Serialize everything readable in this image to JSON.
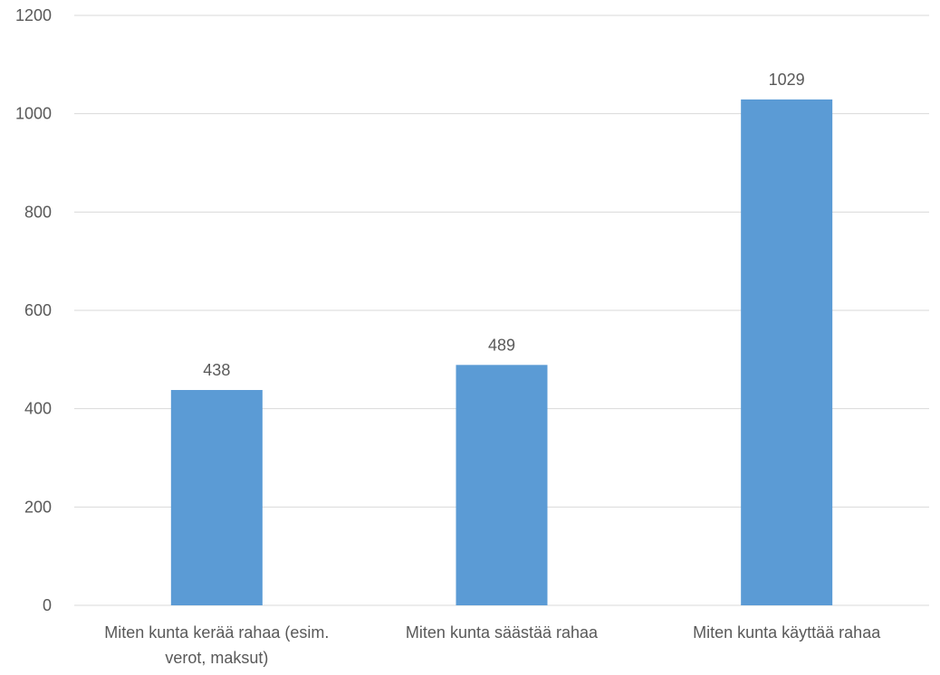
{
  "chart_data": {
    "type": "bar",
    "categories": [
      "Miten kunta kerää rahaa (esim. verot, maksut)",
      "Miten kunta säästää rahaa",
      "Miten kunta käyttää rahaa"
    ],
    "category_lines": [
      [
        "Miten kunta kerää rahaa (esim.",
        "verot, maksut)"
      ],
      [
        "Miten kunta säästää rahaa"
      ],
      [
        "Miten kunta käyttää rahaa"
      ]
    ],
    "values": [
      438,
      489,
      1029
    ],
    "data_labels": [
      "438",
      "489",
      "1029"
    ],
    "y_ticks": [
      0,
      200,
      400,
      600,
      800,
      1000,
      1200
    ],
    "y_tick_labels": [
      "0",
      "200",
      "400",
      "600",
      "800",
      "1000",
      "1200"
    ],
    "ylim": [
      0,
      1200
    ],
    "title": "",
    "xlabel": "",
    "ylabel": "",
    "grid": true,
    "legend": "none",
    "colors": {
      "bar": "#5b9bd5",
      "grid": "#d9d9d9",
      "text": "#595959"
    }
  }
}
